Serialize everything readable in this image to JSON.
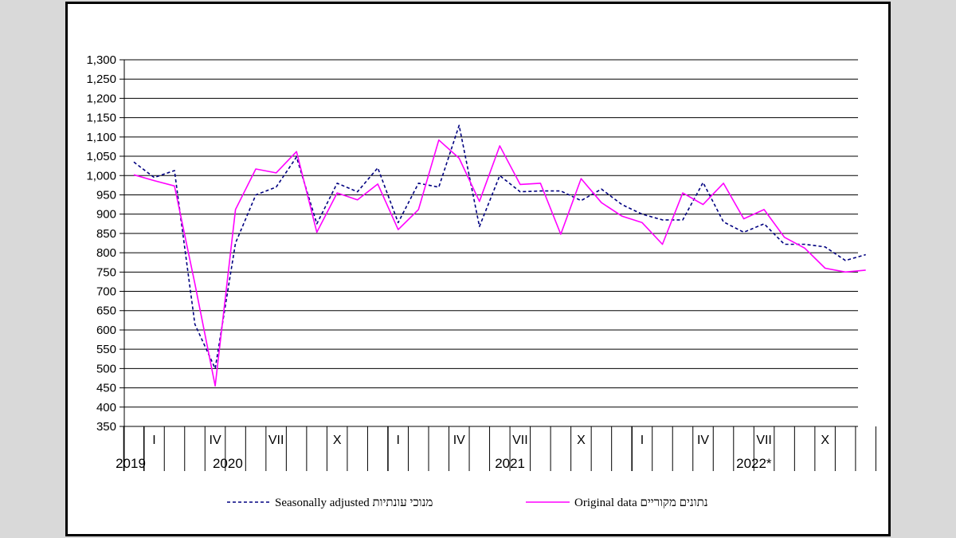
{
  "chart_data": {
    "type": "line",
    "title": "",
    "xlabel": "",
    "ylabel": "",
    "ylim": [
      350,
      1300
    ],
    "yticks": [
      "350",
      "400",
      "450",
      "500",
      "550",
      "600",
      "650",
      "700",
      "750",
      "800",
      "850",
      "900",
      "950",
      "1,000",
      "1,050",
      "1,100",
      "1,150",
      "1,200",
      "1,250",
      "1,300"
    ],
    "grid": true,
    "month_ticks": [
      "I",
      "IV",
      "VII",
      "X",
      "I",
      "IV",
      "VII",
      "X",
      "I",
      "IV",
      "VII",
      "X"
    ],
    "years": [
      "2019",
      "2020",
      "2021",
      "2022*"
    ],
    "x": [
      "2019-12",
      "2020-01",
      "2020-02",
      "2020-03",
      "2020-04",
      "2020-05",
      "2020-06",
      "2020-07",
      "2020-08",
      "2020-09",
      "2020-10",
      "2020-11",
      "2020-12",
      "2021-01",
      "2021-02",
      "2021-03",
      "2021-04",
      "2021-05",
      "2021-06",
      "2021-07",
      "2021-08",
      "2021-09",
      "2021-10",
      "2021-11",
      "2021-12",
      "2022-01",
      "2022-02",
      "2022-03",
      "2022-04",
      "2022-05",
      "2022-06",
      "2022-07",
      "2022-08",
      "2022-09",
      "2022-10",
      "2022-11",
      "2022-12"
    ],
    "series": [
      {
        "name": "Seasonally adjusted מנוכי עונתיות",
        "color": "#000080",
        "style": "dashed",
        "values": [
          1035,
          995,
          1013,
          615,
          500,
          825,
          950,
          970,
          1048,
          875,
          980,
          958,
          1020,
          878,
          980,
          970,
          1130,
          868,
          1000,
          958,
          960,
          960,
          935,
          965,
          925,
          900,
          885,
          885,
          982,
          880,
          853,
          875,
          822,
          822,
          815,
          780,
          795
        ]
      },
      {
        "name": "Original data נתונים מקוריים",
        "color": "#ff00ff",
        "style": "solid",
        "values": [
          1002,
          987,
          973,
          720,
          455,
          912,
          1017,
          1007,
          1062,
          853,
          955,
          937,
          978,
          860,
          912,
          1092,
          1045,
          933,
          1077,
          977,
          980,
          848,
          992,
          930,
          895,
          878,
          822,
          955,
          925,
          980,
          888,
          912,
          840,
          812,
          760,
          750,
          755
        ]
      }
    ],
    "legend_placement": "bottom"
  }
}
